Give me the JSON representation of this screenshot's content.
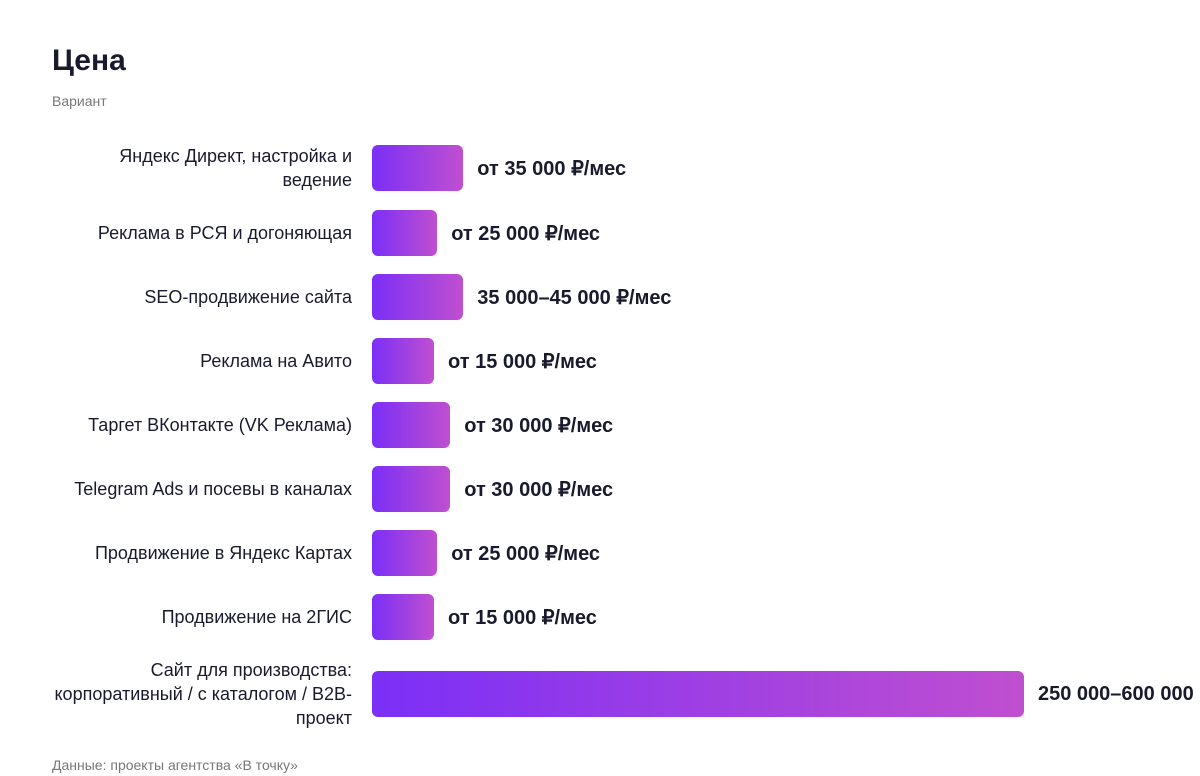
{
  "chart_data": {
    "type": "bar",
    "orientation": "horizontal",
    "title": "Цена",
    "subtitle": "Вариант",
    "categories": [
      "Яндекс Директ, настройка и ведение",
      "Реклама в РСЯ и догоняющая",
      "SEO-продвижение сайта",
      "Реклама на Авито",
      "Таргет ВКонтакте (VK Реклама)",
      "Telegram Ads и посевы в каналах",
      "Продвижение в Яндекс Картах",
      "Продвижение на 2ГИС",
      "Сайт для производства: корпоративный / с каталогом / B2B-проект"
    ],
    "values": [
      35000,
      25000,
      35000,
      15000,
      30000,
      30000,
      25000,
      15000,
      250000
    ],
    "value_labels": [
      "от 35 000 ₽/мес",
      "от 25 000 ₽/мес",
      "35 000–45 000 ₽/мес",
      "от 15 000 ₽/мес",
      "от 30 000 ₽/мес",
      "от 30 000 ₽/мес",
      "от 25 000 ₽/мес",
      "от 15 000 ₽/мес",
      "250 000–600 000"
    ],
    "color": [
      "#7b2ff7",
      "#c04fd0"
    ],
    "source": "Данные: проекты агентства «В точку»"
  }
}
